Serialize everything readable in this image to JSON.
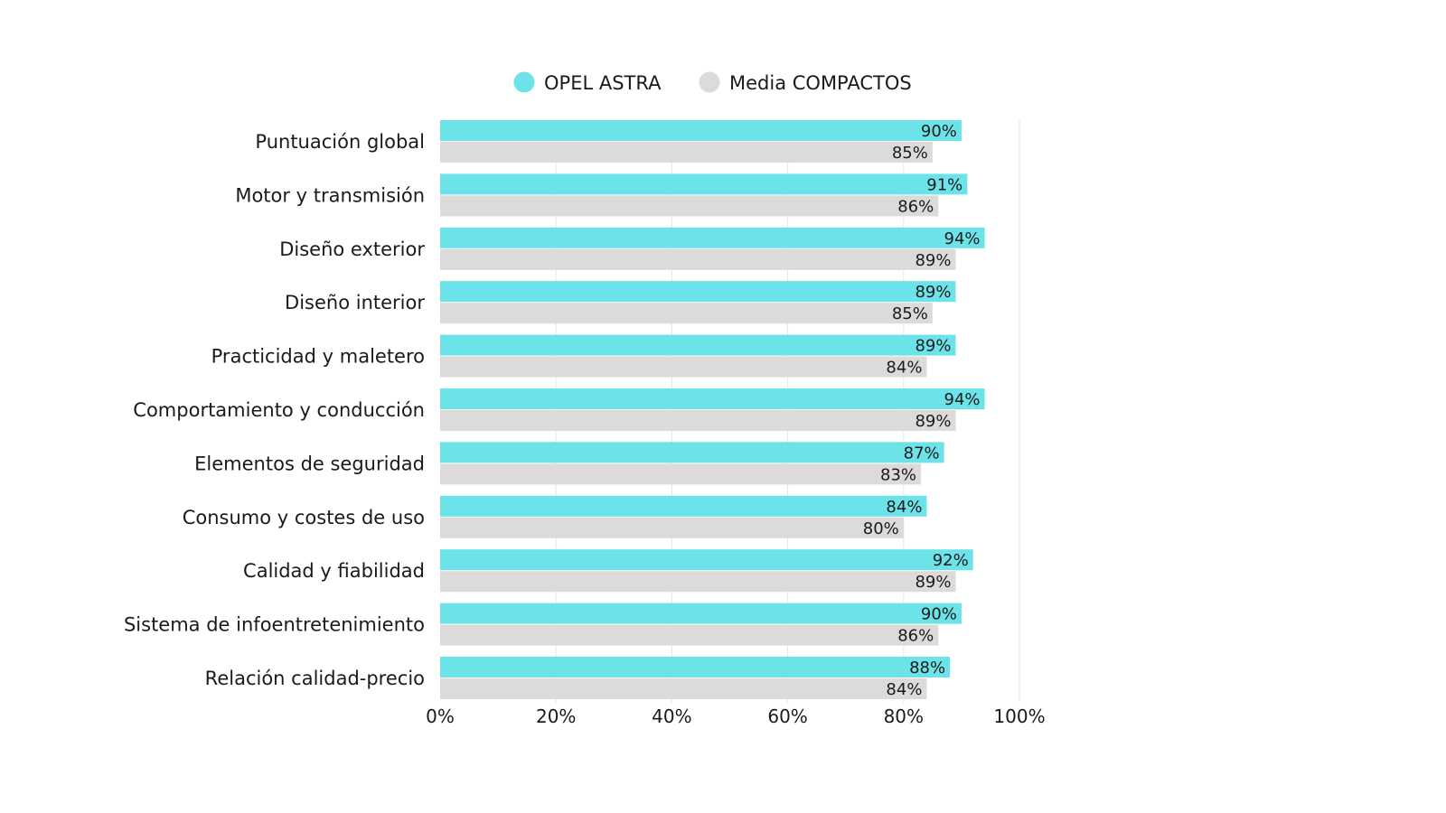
{
  "chart_data": {
    "type": "bar",
    "orientation": "horizontal",
    "categories": [
      "Puntuación global",
      "Motor y transmisión",
      "Diseño exterior",
      "Diseño interior",
      "Practicidad y maletero",
      "Comportamiento y conducción",
      "Elementos de seguridad",
      "Consumo y costes de uso",
      "Calidad y fiabilidad",
      "Sistema de infoentretenimiento",
      "Relación calidad-precio"
    ],
    "series": [
      {
        "name": "OPEL ASTRA",
        "color": "#6ce3e8",
        "values": [
          90,
          91,
          94,
          89,
          89,
          94,
          87,
          84,
          92,
          90,
          88
        ],
        "labels": [
          "90%",
          "91%",
          "94%",
          "89%",
          "89%",
          "94%",
          "87%",
          "84%",
          "92%",
          "90%",
          "88%"
        ]
      },
      {
        "name": "Media COMPACTOS",
        "color": "#dcdbd9",
        "values": [
          85,
          86,
          89,
          85,
          84,
          89,
          83,
          80,
          89,
          86,
          84
        ],
        "labels": [
          "85%",
          "86%",
          "89%",
          "85%",
          "84%",
          "89%",
          "83%",
          "80%",
          "89%",
          "86%",
          "84%"
        ]
      }
    ],
    "xlim": [
      0,
      100
    ],
    "xticks": [
      0,
      20,
      40,
      60,
      80,
      100
    ],
    "xtick_labels": [
      "0%",
      "20%",
      "40%",
      "60%",
      "80%",
      "100%"
    ],
    "grid": true,
    "legend_position": "top-center",
    "title": "",
    "xlabel": "",
    "ylabel": ""
  }
}
